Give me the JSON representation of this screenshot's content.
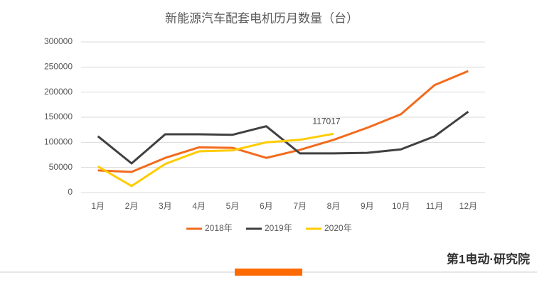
{
  "chart_data": {
    "type": "line",
    "title": "新能源汽车配套电机历月数量（台）",
    "categories": [
      "1月",
      "2月",
      "3月",
      "4月",
      "5月",
      "6月",
      "7月",
      "8月",
      "9月",
      "10月",
      "11月",
      "12月"
    ],
    "series": [
      {
        "name": "2018年",
        "color": "#f26b1d",
        "values": [
          44000,
          41000,
          69000,
          90000,
          89000,
          69000,
          85000,
          105000,
          129000,
          156000,
          214000,
          242000
        ]
      },
      {
        "name": "2019年",
        "color": "#404040",
        "values": [
          112000,
          58000,
          116000,
          116000,
          115000,
          132000,
          78000,
          78000,
          79000,
          86000,
          112000,
          161000
        ]
      },
      {
        "name": "2020年",
        "color": "#ffcc00",
        "values": [
          52000,
          13000,
          57000,
          82000,
          84000,
          100000,
          105000,
          117017,
          null,
          null,
          null,
          null
        ]
      }
    ],
    "ylim": [
      0,
      300000
    ],
    "yticks": [
      0,
      50000,
      100000,
      150000,
      200000,
      250000,
      300000
    ],
    "grid": true,
    "legend": "bottom"
  },
  "footer": {
    "brand": "第1电动·研究院"
  }
}
